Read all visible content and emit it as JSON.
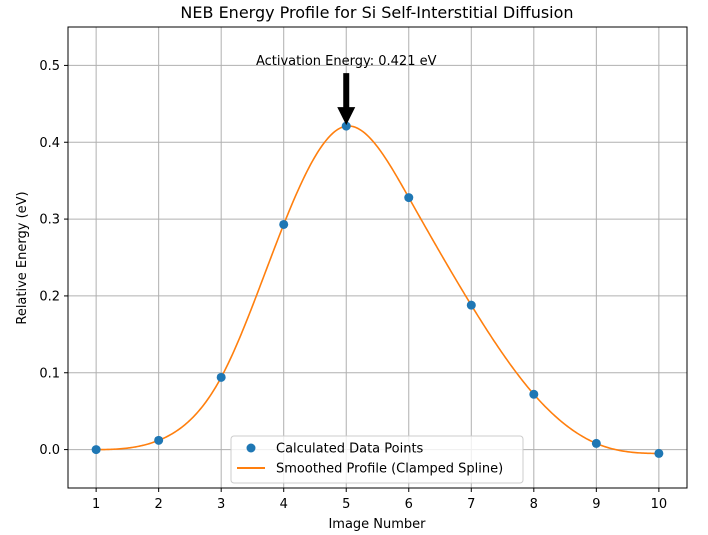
{
  "chart_data": {
    "type": "line",
    "title": "NEB Energy Profile for Si Self-Interstitial Diffusion",
    "xlabel": "Image Number",
    "ylabel": "Relative Energy (eV)",
    "xlim": [
      0.55,
      10.45
    ],
    "ylim": [
      -0.05,
      0.55
    ],
    "xticks": [
      1,
      2,
      3,
      4,
      5,
      6,
      7,
      8,
      9,
      10
    ],
    "yticks": [
      0.0,
      0.1,
      0.2,
      0.3,
      0.4,
      0.5
    ],
    "ytick_labels": [
      "0.0",
      "0.1",
      "0.2",
      "0.3",
      "0.4",
      "0.5"
    ],
    "grid": true,
    "legend_position": "bottom-center",
    "series": [
      {
        "name": "Calculated Data Points",
        "kind": "scatter",
        "color": "#1f77b4",
        "x": [
          1,
          2,
          3,
          4,
          5,
          6,
          7,
          8,
          9,
          10
        ],
        "y": [
          0.0,
          0.012,
          0.094,
          0.293,
          0.421,
          0.328,
          0.188,
          0.072,
          0.008,
          -0.005
        ]
      },
      {
        "name": "Smoothed Profile (Clamped Spline)",
        "kind": "line",
        "color": "#ff7f0e"
      }
    ],
    "annotation": {
      "text": "Activation Energy: 0.421 eV",
      "x": 5,
      "y": 0.421
    }
  }
}
